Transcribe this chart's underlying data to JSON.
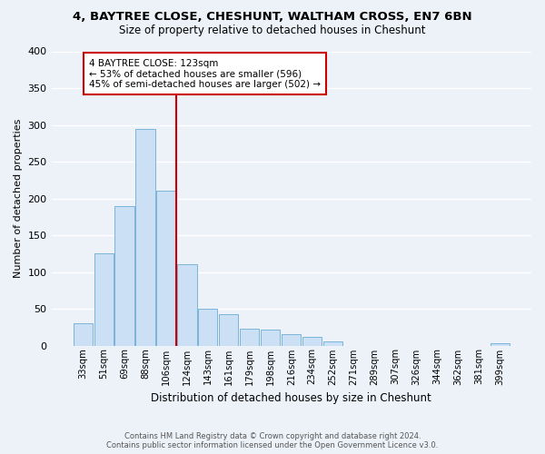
{
  "title_line1": "4, BAYTREE CLOSE, CHESHUNT, WALTHAM CROSS, EN7 6BN",
  "title_line2": "Size of property relative to detached houses in Cheshunt",
  "xlabel": "Distribution of detached houses by size in Cheshunt",
  "ylabel": "Number of detached properties",
  "bar_labels": [
    "33sqm",
    "51sqm",
    "69sqm",
    "88sqm",
    "106sqm",
    "124sqm",
    "143sqm",
    "161sqm",
    "179sqm",
    "198sqm",
    "216sqm",
    "234sqm",
    "252sqm",
    "271sqm",
    "289sqm",
    "307sqm",
    "326sqm",
    "344sqm",
    "362sqm",
    "381sqm",
    "399sqm"
  ],
  "bar_values": [
    30,
    125,
    190,
    295,
    210,
    110,
    50,
    42,
    23,
    22,
    16,
    12,
    5,
    0,
    0,
    0,
    0,
    0,
    0,
    0,
    3
  ],
  "bar_color": "#cce0f5",
  "bar_edge_color": "#7ab4d8",
  "marker_index": 4,
  "marker_color": "#cc0000",
  "annotation_title": "4 BAYTREE CLOSE: 123sqm",
  "annotation_line2": "← 53% of detached houses are smaller (596)",
  "annotation_line3": "45% of semi-detached houses are larger (502) →",
  "annotation_box_color": "#ffffff",
  "annotation_box_edge": "#cc0000",
  "ylim": [
    0,
    400
  ],
  "yticks": [
    0,
    50,
    100,
    150,
    200,
    250,
    300,
    350,
    400
  ],
  "footer_line1": "Contains HM Land Registry data © Crown copyright and database right 2024.",
  "footer_line2": "Contains public sector information licensed under the Open Government Licence v3.0.",
  "bg_color": "#edf2f9",
  "plot_bg_color": "#edf2f9",
  "grid_color": "#ffffff"
}
